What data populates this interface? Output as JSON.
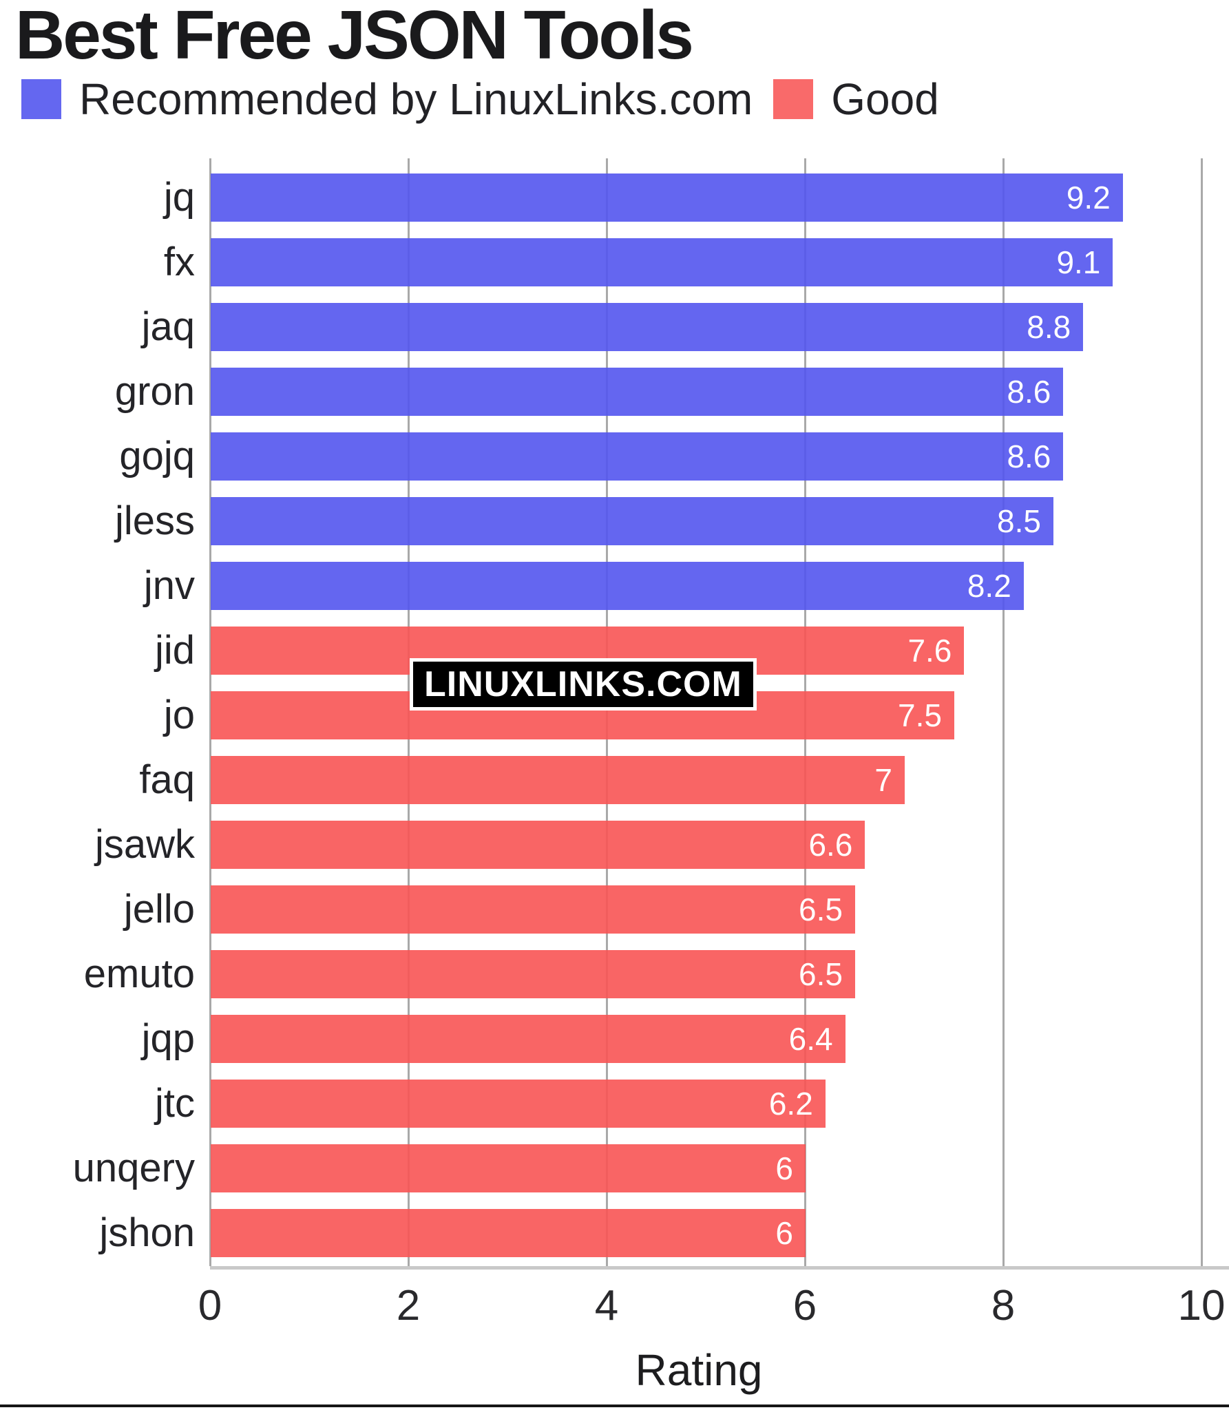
{
  "watermark": "LINUXLINKS.COM",
  "chart_data": {
    "type": "bar",
    "orientation": "horizontal",
    "title": "Best Free JSON Tools",
    "xlabel": "Rating",
    "xlim": [
      0,
      10
    ],
    "x_ticks": [
      "0",
      "2",
      "4",
      "6",
      "8",
      "10"
    ],
    "grid": true,
    "legend_position": "top",
    "series": [
      {
        "name": "Recommended by LinuxLinks.com",
        "color": "rgba(83,85,238,0.9)",
        "swatch_color": "#6467f0",
        "items": [
          {
            "label": "jq",
            "value": 9.2,
            "display": "9.2"
          },
          {
            "label": "fx",
            "value": 9.1,
            "display": "9.1"
          },
          {
            "label": "jaq",
            "value": 8.8,
            "display": "8.8"
          },
          {
            "label": "gron",
            "value": 8.6,
            "display": "8.6"
          },
          {
            "label": "gojq",
            "value": 8.6,
            "display": "8.6"
          },
          {
            "label": "jless",
            "value": 8.5,
            "display": "8.5"
          },
          {
            "label": "jnv",
            "value": 8.2,
            "display": "8.2"
          }
        ]
      },
      {
        "name": "Good",
        "color": "rgba(248,84,84,0.9)",
        "swatch_color": "#f96a6a",
        "items": [
          {
            "label": "jid",
            "value": 7.6,
            "display": "7.6"
          },
          {
            "label": "jo",
            "value": 7.5,
            "display": "7.5"
          },
          {
            "label": "faq",
            "value": 7,
            "display": "7"
          },
          {
            "label": "jsawk",
            "value": 6.6,
            "display": "6.6"
          },
          {
            "label": "jello",
            "value": 6.5,
            "display": "6.5"
          },
          {
            "label": "emuto",
            "value": 6.5,
            "display": "6.5"
          },
          {
            "label": "jqp",
            "value": 6.4,
            "display": "6.4"
          },
          {
            "label": "jtc",
            "value": 6.2,
            "display": "6.2"
          },
          {
            "label": "unqery",
            "value": 6,
            "display": "6"
          },
          {
            "label": "jshon",
            "value": 6,
            "display": "6"
          }
        ]
      }
    ]
  }
}
